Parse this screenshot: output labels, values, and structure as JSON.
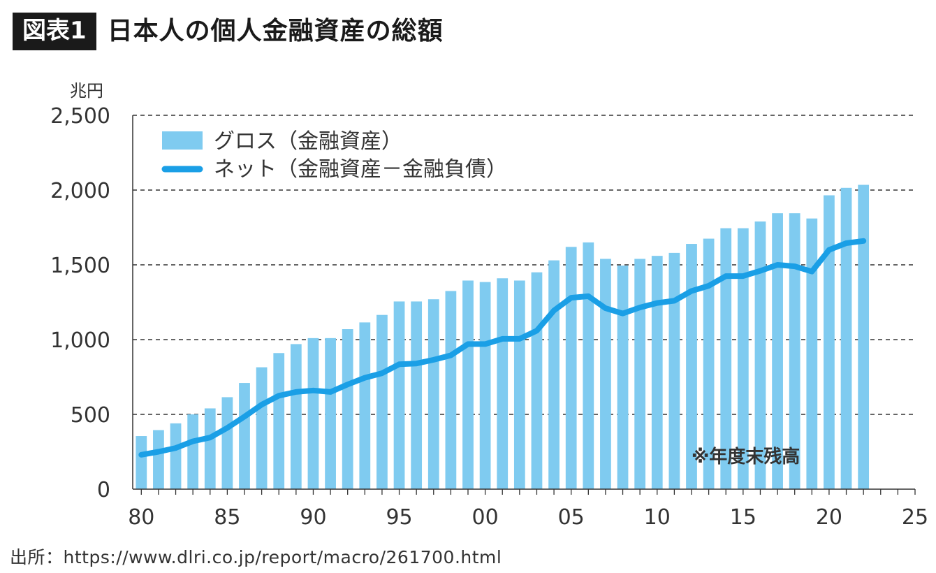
{
  "header": {
    "badge": "図表1",
    "title": "日本人の個人金融資産の総額"
  },
  "source": "出所：https://www.dlri.co.jp/report/macro/261700.html",
  "colors": {
    "bar": "#7fcbf0",
    "line": "#1a9fe6",
    "grid": "#333333",
    "axis": "#333333"
  },
  "chart_data": {
    "type": "bar",
    "ylabel": "兆円",
    "ylim": [
      0,
      2500
    ],
    "yticks": [
      0,
      500,
      1000,
      1500,
      2000,
      2500
    ],
    "ytick_labels": [
      "0",
      "500",
      "1,000",
      "1,500",
      "2,000",
      "2,500"
    ],
    "xlim": [
      1979.5,
      2025
    ],
    "xticks": [
      1980,
      1985,
      1990,
      1995,
      2000,
      2005,
      2010,
      2015,
      2020,
      2025
    ],
    "xtick_labels": [
      "80",
      "85",
      "90",
      "95",
      "00",
      "05",
      "10",
      "15",
      "20",
      "25"
    ],
    "grid": true,
    "legend_position": "top-left",
    "annotation": "※年度末残高",
    "x": [
      1980,
      1981,
      1982,
      1983,
      1984,
      1985,
      1986,
      1987,
      1988,
      1989,
      1990,
      1991,
      1992,
      1993,
      1994,
      1995,
      1996,
      1997,
      1998,
      1999,
      2000,
      2001,
      2002,
      2003,
      2004,
      2005,
      2006,
      2007,
      2008,
      2009,
      2010,
      2011,
      2012,
      2013,
      2014,
      2015,
      2016,
      2017,
      2018,
      2019,
      2020,
      2021,
      2022
    ],
    "series": [
      {
        "name": "グロス（金融資産）",
        "kind": "bar",
        "values": [
          355,
          395,
          440,
          500,
          540,
          615,
          710,
          815,
          910,
          970,
          1010,
          1010,
          1070,
          1115,
          1165,
          1255,
          1255,
          1270,
          1325,
          1395,
          1385,
          1410,
          1395,
          1450,
          1530,
          1620,
          1650,
          1540,
          1495,
          1540,
          1560,
          1580,
          1640,
          1675,
          1745,
          1745,
          1790,
          1845,
          1845,
          1810,
          1965,
          2015,
          2035
        ]
      },
      {
        "name": "ネット（金融資産－金融負債）",
        "kind": "line",
        "values": [
          230,
          250,
          275,
          320,
          345,
          410,
          485,
          565,
          625,
          650,
          660,
          650,
          700,
          745,
          775,
          835,
          840,
          865,
          895,
          970,
          970,
          1005,
          1005,
          1060,
          1195,
          1280,
          1290,
          1210,
          1175,
          1215,
          1245,
          1260,
          1325,
          1360,
          1425,
          1425,
          1460,
          1500,
          1490,
          1455,
          1600,
          1645,
          1660
        ]
      }
    ]
  }
}
